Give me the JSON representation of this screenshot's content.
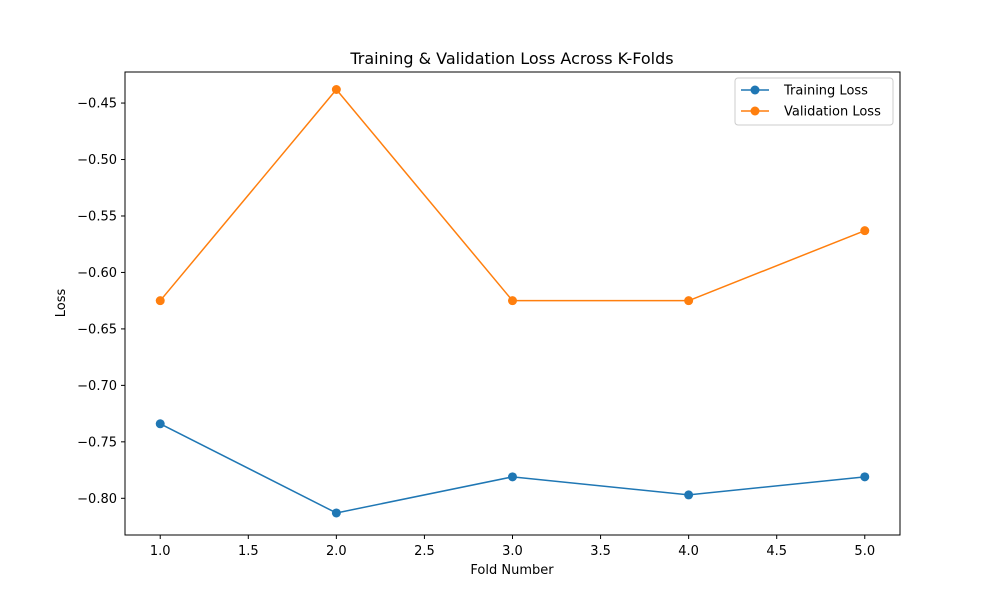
{
  "chart_data": {
    "type": "line",
    "title": "Training & Validation Loss Across K-Folds",
    "xlabel": "Fold Number",
    "ylabel": "Loss",
    "x": [
      1,
      2,
      3,
      4,
      5
    ],
    "xlim": [
      0.8,
      5.2
    ],
    "ylim": [
      -0.8325,
      -0.4225
    ],
    "xticks": [
      1.0,
      1.5,
      2.0,
      2.5,
      3.0,
      3.5,
      4.0,
      4.5,
      5.0
    ],
    "xtick_labels": [
      "1.0",
      "1.5",
      "2.0",
      "2.5",
      "3.0",
      "3.5",
      "4.0",
      "4.5",
      "5.0"
    ],
    "yticks": [
      -0.8,
      -0.75,
      -0.7,
      -0.65,
      -0.6,
      -0.55,
      -0.5,
      -0.45
    ],
    "ytick_labels": [
      "−0.80",
      "−0.75",
      "−0.70",
      "−0.65",
      "−0.60",
      "−0.55",
      "−0.50",
      "−0.45"
    ],
    "grid": false,
    "legend_position": "top-right",
    "series": [
      {
        "name": "Training Loss",
        "color": "#1f77b4",
        "marker": "circle",
        "values": [
          -0.734,
          -0.813,
          -0.781,
          -0.797,
          -0.781
        ]
      },
      {
        "name": "Validation Loss",
        "color": "#ff7f0e",
        "marker": "circle",
        "values": [
          -0.625,
          -0.438,
          -0.625,
          -0.625,
          -0.563
        ]
      }
    ]
  }
}
